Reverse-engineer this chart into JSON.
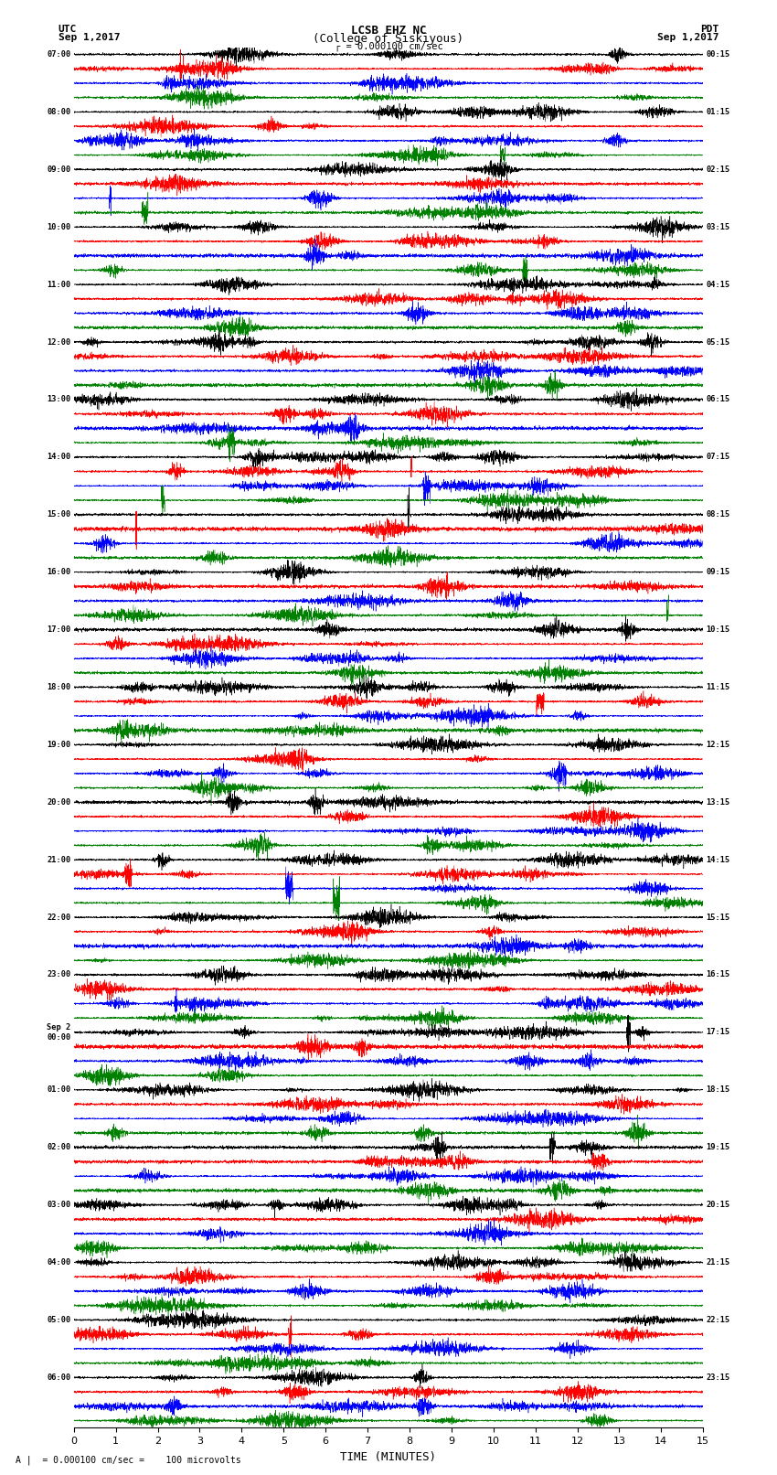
{
  "title_line1": "LCSB EHZ NC",
  "title_line2": "(College of Siskiyous)",
  "scale_text": "= 0.000100 cm/sec",
  "bottom_note": "= 0.000100 cm/sec =    100 microvolts",
  "left_header_line1": "UTC",
  "left_header_line2": "Sep 1,2017",
  "right_header_line1": "PDT",
  "right_header_line2": "Sep 1,2017",
  "xlabel": "TIME (MINUTES)",
  "xticks": [
    0,
    1,
    2,
    3,
    4,
    5,
    6,
    7,
    8,
    9,
    10,
    11,
    12,
    13,
    14,
    15
  ],
  "time_min": 0,
  "time_max": 15,
  "colors": [
    "black",
    "red",
    "blue",
    "green"
  ],
  "left_times": [
    "07:00",
    "",
    "",
    "",
    "08:00",
    "",
    "",
    "",
    "09:00",
    "",
    "",
    "",
    "10:00",
    "",
    "",
    "",
    "11:00",
    "",
    "",
    "",
    "12:00",
    "",
    "",
    "",
    "13:00",
    "",
    "",
    "",
    "14:00",
    "",
    "",
    "",
    "15:00",
    "",
    "",
    "",
    "16:00",
    "",
    "",
    "",
    "17:00",
    "",
    "",
    "",
    "18:00",
    "",
    "",
    "",
    "19:00",
    "",
    "",
    "",
    "20:00",
    "",
    "",
    "",
    "21:00",
    "",
    "",
    "",
    "22:00",
    "",
    "",
    "",
    "23:00",
    "",
    "",
    "",
    "Sep 2\n00:00",
    "",
    "",
    "",
    "01:00",
    "",
    "",
    "",
    "02:00",
    "",
    "",
    "",
    "03:00",
    "",
    "",
    "",
    "04:00",
    "",
    "",
    "",
    "05:00",
    "",
    "",
    "",
    "06:00",
    "",
    "",
    ""
  ],
  "right_times": [
    "00:15",
    "",
    "",
    "",
    "01:15",
    "",
    "",
    "",
    "02:15",
    "",
    "",
    "",
    "03:15",
    "",
    "",
    "",
    "04:15",
    "",
    "",
    "",
    "05:15",
    "",
    "",
    "",
    "06:15",
    "",
    "",
    "",
    "07:15",
    "",
    "",
    "",
    "08:15",
    "",
    "",
    "",
    "09:15",
    "",
    "",
    "",
    "10:15",
    "",
    "",
    "",
    "11:15",
    "",
    "",
    "",
    "12:15",
    "",
    "",
    "",
    "13:15",
    "",
    "",
    "",
    "14:15",
    "",
    "",
    "",
    "15:15",
    "",
    "",
    "",
    "16:15",
    "",
    "",
    "",
    "17:15",
    "",
    "",
    "",
    "18:15",
    "",
    "",
    "",
    "19:15",
    "",
    "",
    "",
    "20:15",
    "",
    "",
    "",
    "21:15",
    "",
    "",
    "",
    "22:15",
    "",
    "",
    "",
    "23:15",
    "",
    "",
    ""
  ],
  "num_rows": 96,
  "bg_color": "white",
  "seed": 42
}
